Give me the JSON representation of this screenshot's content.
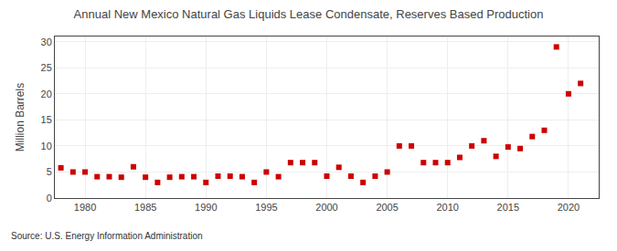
{
  "chart_data": {
    "type": "scatter",
    "title": "Annual New Mexico Natural Gas Liquids Lease Condensate, Reserves Based Production",
    "ylabel": "Million Barrels",
    "source": "Source: U.S. Energy Information Administration",
    "x": [
      1978,
      1979,
      1980,
      1981,
      1982,
      1983,
      1984,
      1985,
      1986,
      1987,
      1988,
      1989,
      1990,
      1991,
      1992,
      1993,
      1994,
      1995,
      1996,
      1997,
      1998,
      1999,
      2000,
      2001,
      2002,
      2003,
      2004,
      2005,
      2006,
      2007,
      2008,
      2009,
      2010,
      2011,
      2012,
      2013,
      2014,
      2015,
      2016,
      2017,
      2018,
      2019,
      2020,
      2021
    ],
    "values": [
      5.8,
      5.0,
      5.0,
      4.1,
      4.1,
      4.0,
      6.0,
      4.0,
      3.0,
      4.0,
      4.1,
      4.1,
      3.0,
      4.2,
      4.2,
      4.1,
      3.0,
      5.0,
      4.1,
      6.8,
      6.8,
      6.8,
      4.2,
      5.9,
      4.2,
      3.0,
      4.2,
      5.0,
      10.0,
      10.0,
      6.8,
      6.8,
      6.8,
      7.8,
      10.0,
      11.0,
      8.0,
      9.8,
      9.5,
      11.8,
      13.0,
      29.0,
      20.0,
      22.0
    ],
    "color": "#cc0000",
    "marker": "square",
    "xlim": [
      1977.5,
      2022.5
    ],
    "xticks": [
      1980,
      1985,
      1990,
      1995,
      2000,
      2005,
      2010,
      2015,
      2020
    ],
    "ylim": [
      0,
      31
    ],
    "yticks": [
      0,
      5,
      10,
      15,
      20,
      25,
      30
    ],
    "grid": true
  }
}
